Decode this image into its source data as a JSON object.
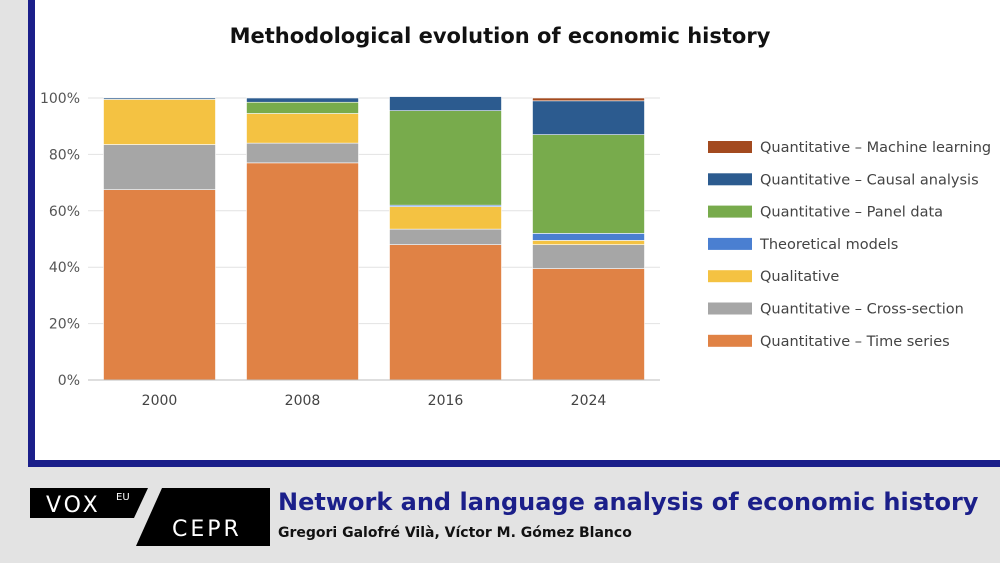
{
  "chart_data": {
    "type": "bar",
    "stacked": true,
    "title": "Methodological evolution of economic history",
    "categories": [
      "2000",
      "2008",
      "2016",
      "2024"
    ],
    "ylim": [
      0,
      100
    ],
    "yticks": [
      "0%",
      "20%",
      "40%",
      "60%",
      "80%",
      "100%"
    ],
    "legend_position": "right",
    "series": [
      {
        "name": "Quantitative – Time series",
        "color": "#e08245",
        "values": [
          67.5,
          77,
          48,
          39.5
        ]
      },
      {
        "name": "Quantitative – Cross-section",
        "color": "#a6a6a6",
        "values": [
          16,
          7,
          5.5,
          8.5
        ]
      },
      {
        "name": "Qualitative",
        "color": "#f4c242",
        "values": [
          16,
          10.5,
          8,
          1.5
        ]
      },
      {
        "name": "Theoretical models",
        "color": "#4a7fd1",
        "values": [
          0,
          0,
          0.5,
          2.5
        ]
      },
      {
        "name": "Quantitative – Panel data",
        "color": "#78ab4c",
        "values": [
          0,
          4,
          33.5,
          35
        ]
      },
      {
        "name": "Quantitative – Causal analysis",
        "color": "#2c5b8f",
        "values": [
          0.5,
          1.5,
          5,
          12
        ]
      },
      {
        "name": "Quantitative – Machine learning",
        "color": "#a34a1f",
        "values": [
          0,
          0,
          0,
          1
        ]
      }
    ]
  },
  "footer": {
    "logo_vox": "VOX",
    "logo_eu": "EU",
    "logo_cepr": "CEPR",
    "title": "Network and language analysis of economic history",
    "authors": "Gregori Galofré Vilà, Víctor M. Gómez Blanco"
  }
}
